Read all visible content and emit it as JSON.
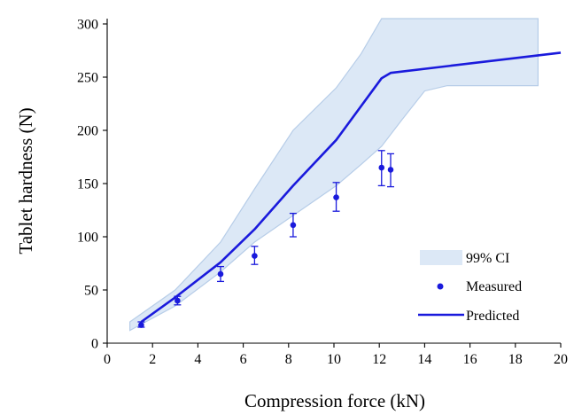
{
  "colors": {
    "ci_fill": "#dce8f6",
    "ci_edge": "#b7cde8",
    "measured": "#1a1adc",
    "predicted": "#1a1adc",
    "axis": "#000000"
  },
  "chart_data": {
    "type": "line",
    "xlabel": "Compression force (kN)",
    "ylabel": "Tablet hardness (N)",
    "xlim": [
      0,
      20
    ],
    "ylim": [
      0,
      305
    ],
    "x_ticks": [
      0,
      2,
      4,
      6,
      8,
      10,
      12,
      14,
      16,
      18,
      20
    ],
    "y_ticks": [
      0,
      50,
      100,
      150,
      200,
      250,
      300
    ],
    "grid": false,
    "legend_position": "bottom-right",
    "legend": [
      "99% CI",
      "Measured",
      "Predicted"
    ],
    "series": [
      {
        "name": "99% CI",
        "kind": "band",
        "x": [
          1.0,
          3.0,
          5.0,
          6.5,
          8.2,
          10.1,
          11.2,
          12.1,
          13.0,
          14.0,
          15.0,
          19.0
        ],
        "lower": [
          12,
          35,
          67,
          95,
          120,
          148,
          168,
          185,
          210,
          237,
          242,
          242
        ],
        "upper": [
          20,
          50,
          95,
          145,
          200,
          240,
          272,
          305,
          305,
          305,
          305,
          305
        ]
      },
      {
        "name": "Measured",
        "kind": "points",
        "x": [
          1.5,
          3.1,
          5.0,
          6.5,
          8.2,
          10.1,
          12.1,
          12.5
        ],
        "y": [
          17,
          40,
          65,
          82,
          111,
          137,
          165,
          163
        ],
        "error_low": [
          15,
          36,
          58,
          74,
          100,
          124,
          148,
          147
        ],
        "error_high": [
          20,
          44,
          72,
          91,
          122,
          151,
          181,
          178
        ]
      },
      {
        "name": "Predicted",
        "kind": "line",
        "x": [
          1.5,
          3.0,
          5.0,
          6.5,
          8.2,
          10.1,
          12.1,
          12.5,
          20.0
        ],
        "y": [
          20,
          43,
          76,
          107,
          148,
          191,
          249,
          254,
          273
        ]
      }
    ]
  }
}
